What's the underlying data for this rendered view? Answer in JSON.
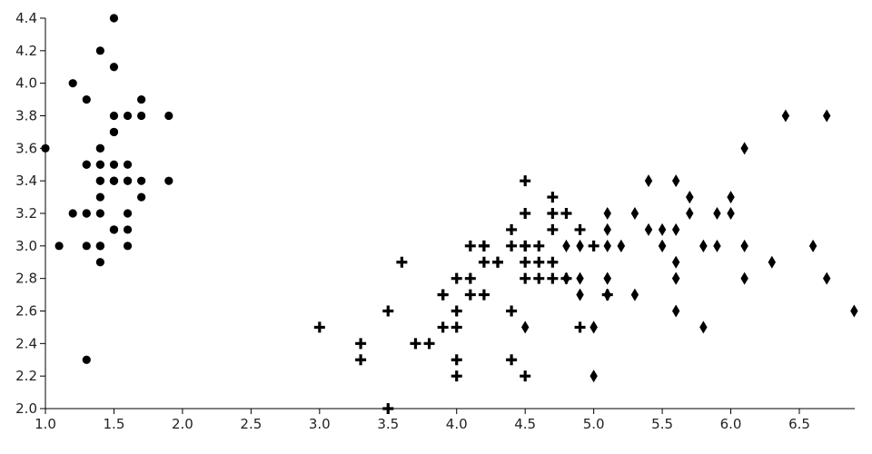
{
  "chart_data": {
    "type": "scatter",
    "title": "",
    "xlabel": "",
    "ylabel": "",
    "xlim": [
      1.0,
      6.9
    ],
    "ylim": [
      2.0,
      4.4
    ],
    "grid": false,
    "legend": "none",
    "x_ticks": [
      "1.0",
      "1.5",
      "2.0",
      "2.5",
      "3.0",
      "3.5",
      "4.0",
      "4.5",
      "5.0",
      "5.5",
      "6.0",
      "6.5"
    ],
    "y_ticks": [
      "2.0",
      "2.2",
      "2.4",
      "2.6",
      "2.8",
      "3.0",
      "3.2",
      "3.4",
      "3.6",
      "3.8",
      "4.0",
      "4.2",
      "4.4"
    ],
    "series": [
      {
        "marker": "circle",
        "color": "#000000",
        "points": [
          [
            1.4,
            3.5
          ],
          [
            1.4,
            3.0
          ],
          [
            1.3,
            3.2
          ],
          [
            1.5,
            3.1
          ],
          [
            1.4,
            3.6
          ],
          [
            1.7,
            3.9
          ],
          [
            1.4,
            3.4
          ],
          [
            1.5,
            3.4
          ],
          [
            1.4,
            2.9
          ],
          [
            1.5,
            3.1
          ],
          [
            1.5,
            3.7
          ],
          [
            1.6,
            3.4
          ],
          [
            1.4,
            3.0
          ],
          [
            1.1,
            3.0
          ],
          [
            1.2,
            4.0
          ],
          [
            1.5,
            4.4
          ],
          [
            1.3,
            3.9
          ],
          [
            1.4,
            3.5
          ],
          [
            1.7,
            3.8
          ],
          [
            1.5,
            3.8
          ],
          [
            1.7,
            3.4
          ],
          [
            1.5,
            3.7
          ],
          [
            1.0,
            3.6
          ],
          [
            1.7,
            3.3
          ],
          [
            1.9,
            3.4
          ],
          [
            1.6,
            3.0
          ],
          [
            1.6,
            3.4
          ],
          [
            1.5,
            3.5
          ],
          [
            1.4,
            3.4
          ],
          [
            1.6,
            3.2
          ],
          [
            1.6,
            3.1
          ],
          [
            1.5,
            3.4
          ],
          [
            1.5,
            4.1
          ],
          [
            1.4,
            4.2
          ],
          [
            1.5,
            3.1
          ],
          [
            1.2,
            3.2
          ],
          [
            1.3,
            3.5
          ],
          [
            1.4,
            3.6
          ],
          [
            1.3,
            3.0
          ],
          [
            1.5,
            3.4
          ],
          [
            1.3,
            3.5
          ],
          [
            1.3,
            2.3
          ],
          [
            1.3,
            3.2
          ],
          [
            1.6,
            3.5
          ],
          [
            1.9,
            3.8
          ],
          [
            1.4,
            3.0
          ],
          [
            1.6,
            3.8
          ],
          [
            1.4,
            3.2
          ],
          [
            1.5,
            3.7
          ],
          [
            1.4,
            3.3
          ]
        ]
      },
      {
        "marker": "cross",
        "color": "#000000",
        "points": [
          [
            4.7,
            3.2
          ],
          [
            4.5,
            3.2
          ],
          [
            4.9,
            3.1
          ],
          [
            4.0,
            2.3
          ],
          [
            4.6,
            2.8
          ],
          [
            4.5,
            2.8
          ],
          [
            4.7,
            3.3
          ],
          [
            3.3,
            2.4
          ],
          [
            4.6,
            2.9
          ],
          [
            3.9,
            2.7
          ],
          [
            3.5,
            2.0
          ],
          [
            4.2,
            3.0
          ],
          [
            4.0,
            2.2
          ],
          [
            4.7,
            2.9
          ],
          [
            3.6,
            2.9
          ],
          [
            4.4,
            3.1
          ],
          [
            4.5,
            3.0
          ],
          [
            4.1,
            2.7
          ],
          [
            4.5,
            2.2
          ],
          [
            3.9,
            2.5
          ],
          [
            4.8,
            3.2
          ],
          [
            4.0,
            2.8
          ],
          [
            4.9,
            2.5
          ],
          [
            4.7,
            2.8
          ],
          [
            4.3,
            2.9
          ],
          [
            4.4,
            3.0
          ],
          [
            4.8,
            2.8
          ],
          [
            5.0,
            3.0
          ],
          [
            4.5,
            2.9
          ],
          [
            3.5,
            2.6
          ],
          [
            3.8,
            2.4
          ],
          [
            3.7,
            2.4
          ],
          [
            3.9,
            2.7
          ],
          [
            5.1,
            2.7
          ],
          [
            4.5,
            3.0
          ],
          [
            4.5,
            3.4
          ],
          [
            4.7,
            3.1
          ],
          [
            4.4,
            2.3
          ],
          [
            4.1,
            3.0
          ],
          [
            4.0,
            2.5
          ],
          [
            4.4,
            2.6
          ],
          [
            4.6,
            3.0
          ],
          [
            4.0,
            2.6
          ],
          [
            3.3,
            2.3
          ],
          [
            4.2,
            2.7
          ],
          [
            4.2,
            3.0
          ],
          [
            4.2,
            2.9
          ],
          [
            4.3,
            2.9
          ],
          [
            3.0,
            2.5
          ],
          [
            4.1,
            2.8
          ]
        ]
      },
      {
        "marker": "diamond",
        "color": "#000000",
        "points": [
          [
            6.0,
            3.3
          ],
          [
            5.1,
            2.7
          ],
          [
            5.9,
            3.0
          ],
          [
            5.6,
            2.9
          ],
          [
            5.8,
            3.0
          ],
          [
            6.6,
            3.0
          ],
          [
            4.5,
            2.5
          ],
          [
            6.3,
            2.9
          ],
          [
            5.8,
            2.5
          ],
          [
            6.1,
            3.6
          ],
          [
            5.1,
            3.2
          ],
          [
            5.3,
            2.7
          ],
          [
            5.5,
            3.0
          ],
          [
            5.0,
            2.5
          ],
          [
            5.1,
            2.8
          ],
          [
            5.3,
            3.2
          ],
          [
            5.5,
            3.0
          ],
          [
            6.7,
            3.8
          ],
          [
            6.9,
            2.6
          ],
          [
            5.0,
            2.2
          ],
          [
            5.7,
            3.2
          ],
          [
            4.9,
            2.8
          ],
          [
            6.7,
            2.8
          ],
          [
            4.9,
            2.7
          ],
          [
            5.7,
            3.3
          ],
          [
            6.0,
            3.2
          ],
          [
            4.8,
            2.8
          ],
          [
            4.9,
            3.0
          ],
          [
            5.6,
            2.8
          ],
          [
            5.8,
            3.0
          ],
          [
            6.1,
            2.8
          ],
          [
            6.4,
            3.8
          ],
          [
            5.6,
            2.8
          ],
          [
            5.1,
            2.8
          ],
          [
            5.6,
            2.6
          ],
          [
            6.1,
            3.0
          ],
          [
            5.6,
            3.4
          ],
          [
            5.5,
            3.1
          ],
          [
            4.8,
            3.0
          ],
          [
            5.4,
            3.1
          ],
          [
            5.6,
            3.1
          ],
          [
            5.1,
            3.1
          ],
          [
            5.1,
            2.7
          ],
          [
            5.9,
            3.2
          ],
          [
            5.7,
            3.3
          ],
          [
            5.2,
            3.0
          ],
          [
            5.0,
            2.5
          ],
          [
            5.2,
            3.0
          ],
          [
            5.4,
            3.4
          ],
          [
            5.1,
            3.0
          ]
        ]
      }
    ]
  }
}
